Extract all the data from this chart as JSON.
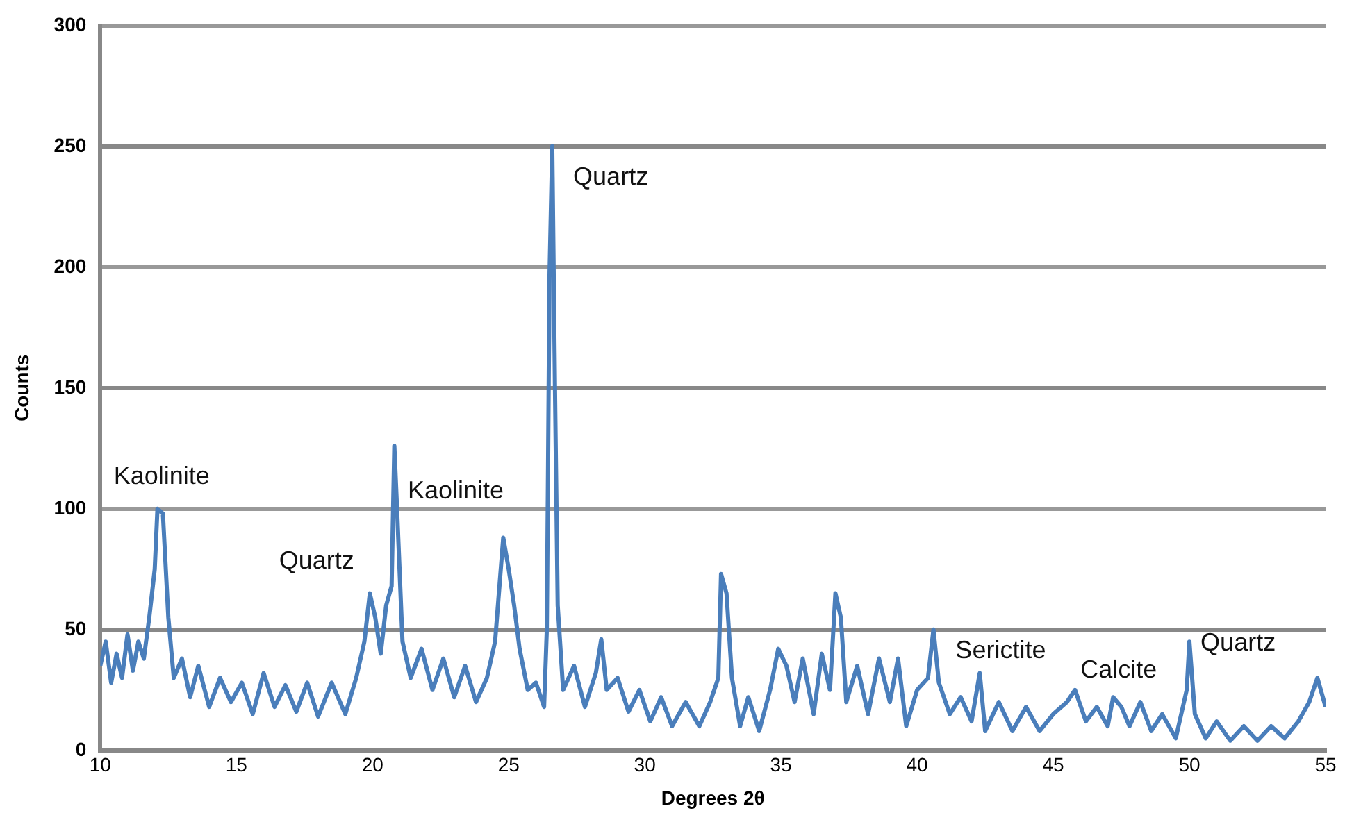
{
  "chart_data": {
    "type": "line",
    "xlabel": "Degrees 2θ",
    "ylabel": "Counts",
    "xlim": [
      10,
      55
    ],
    "xticks": [
      10,
      15,
      20,
      25,
      30,
      35,
      40,
      45,
      50,
      55
    ],
    "ylim": [
      0,
      300
    ],
    "yticks": [
      0,
      50,
      100,
      150,
      200,
      250,
      300
    ],
    "grid": "y",
    "legend": false,
    "marker": "none",
    "line_style": "solid",
    "series": [
      {
        "color": "#4a7ebb",
        "x": [
          10.0,
          10.2,
          10.4,
          10.6,
          10.8,
          11.0,
          11.2,
          11.4,
          11.6,
          11.8,
          12.0,
          12.1,
          12.3,
          12.5,
          12.7,
          13.0,
          13.3,
          13.6,
          14.0,
          14.4,
          14.8,
          15.2,
          15.6,
          16.0,
          16.4,
          16.8,
          17.2,
          17.6,
          18.0,
          18.5,
          19.0,
          19.4,
          19.7,
          19.9,
          20.1,
          20.3,
          20.5,
          20.7,
          20.8,
          20.9,
          21.1,
          21.4,
          21.8,
          22.2,
          22.6,
          23.0,
          23.4,
          23.8,
          24.2,
          24.5,
          24.8,
          25.0,
          25.2,
          25.4,
          25.7,
          26.0,
          26.3,
          26.4,
          26.5,
          26.6,
          26.7,
          26.8,
          27.0,
          27.4,
          27.8,
          28.2,
          28.4,
          28.6,
          29.0,
          29.4,
          29.8,
          30.2,
          30.6,
          31.0,
          31.5,
          32.0,
          32.4,
          32.7,
          32.8,
          33.0,
          33.2,
          33.5,
          33.8,
          34.2,
          34.6,
          34.9,
          35.2,
          35.5,
          35.8,
          36.2,
          36.5,
          36.8,
          37.0,
          37.2,
          37.4,
          37.8,
          38.2,
          38.6,
          39.0,
          39.3,
          39.6,
          40.0,
          40.4,
          40.6,
          40.8,
          41.2,
          41.6,
          42.0,
          42.3,
          42.5,
          43.0,
          43.5,
          44.0,
          44.5,
          45.0,
          45.5,
          45.8,
          46.2,
          46.6,
          47.0,
          47.2,
          47.5,
          47.8,
          48.2,
          48.6,
          49.0,
          49.5,
          49.9,
          50.0,
          50.2,
          50.6,
          51.0,
          51.5,
          52.0,
          52.5,
          53.0,
          53.5,
          54.0,
          54.4,
          54.7,
          55.0
        ],
        "values": [
          35,
          45,
          28,
          40,
          30,
          48,
          33,
          45,
          38,
          55,
          75,
          100,
          98,
          55,
          30,
          38,
          22,
          35,
          18,
          30,
          20,
          28,
          15,
          32,
          18,
          27,
          16,
          28,
          14,
          28,
          15,
          30,
          45,
          65,
          55,
          40,
          60,
          68,
          126,
          100,
          45,
          30,
          42,
          25,
          38,
          22,
          35,
          20,
          30,
          45,
          88,
          75,
          60,
          42,
          25,
          28,
          18,
          50,
          197,
          250,
          150,
          60,
          25,
          35,
          18,
          32,
          46,
          25,
          30,
          16,
          25,
          12,
          22,
          10,
          20,
          10,
          20,
          30,
          73,
          65,
          30,
          10,
          22,
          8,
          25,
          42,
          35,
          20,
          38,
          15,
          40,
          25,
          65,
          55,
          20,
          35,
          15,
          38,
          20,
          38,
          10,
          25,
          30,
          50,
          28,
          15,
          22,
          12,
          32,
          8,
          20,
          8,
          18,
          8,
          15,
          20,
          25,
          12,
          18,
          10,
          22,
          18,
          10,
          20,
          8,
          15,
          5,
          25,
          45,
          15,
          5,
          12,
          4,
          10,
          4,
          10,
          5,
          12,
          20,
          30,
          18
        ]
      }
    ],
    "annotations": [
      "Kaolinite",
      "Quartz",
      "Kaolinite",
      "Quartz",
      "Serictite",
      "Calcite",
      "Quartz"
    ]
  }
}
